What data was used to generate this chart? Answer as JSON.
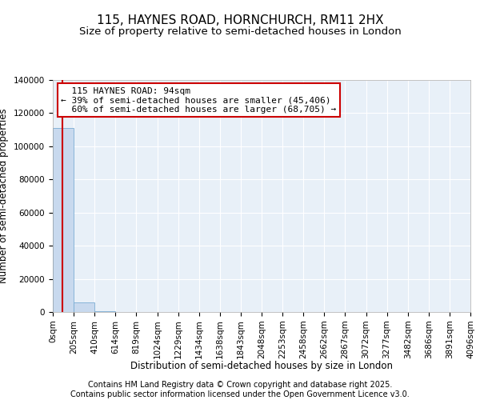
{
  "title": "115, HAYNES ROAD, HORNCHURCH, RM11 2HX",
  "subtitle": "Size of property relative to semi-detached houses in London",
  "xlabel": "Distribution of semi-detached houses by size in London",
  "ylabel": "Number of semi-detached properties",
  "footer": "Contains HM Land Registry data © Crown copyright and database right 2025.\nContains public sector information licensed under the Open Government Licence v3.0.",
  "bar_edges": [
    0,
    205,
    410,
    614,
    819,
    1024,
    1229,
    1434,
    1638,
    1843,
    2048,
    2253,
    2458,
    2662,
    2867,
    3072,
    3277,
    3482,
    3686,
    3891,
    4096
  ],
  "bar_heights": [
    111000,
    5800,
    600,
    200,
    80,
    40,
    20,
    12,
    8,
    5,
    4,
    3,
    2,
    2,
    1,
    1,
    1,
    1,
    0,
    0
  ],
  "bar_color": "#c8d9ee",
  "bar_edge_color": "#7aadd4",
  "property_size": 94,
  "property_name": "115 HAYNES ROAD: 94sqm",
  "pct_smaller": 39,
  "n_smaller": 45406,
  "pct_larger": 60,
  "n_larger": 68705,
  "annotation_box_color": "#ffffff",
  "annotation_box_edge": "#cc0000",
  "vline_color": "#cc0000",
  "ylim": [
    0,
    140000
  ],
  "yticks": [
    0,
    20000,
    40000,
    60000,
    80000,
    100000,
    120000,
    140000
  ],
  "plot_bg_color": "#e8f0f8",
  "background_color": "#ffffff",
  "grid_color": "#ffffff",
  "title_fontsize": 11,
  "subtitle_fontsize": 9.5,
  "tick_label_fontsize": 7.5,
  "axis_label_fontsize": 8.5,
  "footer_fontsize": 7,
  "annot_fontsize": 8
}
